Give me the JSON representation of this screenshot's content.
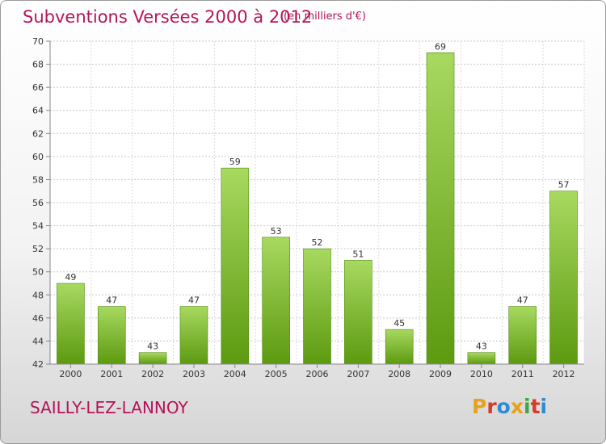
{
  "header": {
    "title": "Subventions Versées 2000 à 2012",
    "subtitle": "(en milliers d'€)"
  },
  "footer": {
    "commune": "SAILLY-LEZ-LANNOY",
    "logo": "Proxiti"
  },
  "colors": {
    "title": "#b5135a",
    "bar_light": "#a4d65e",
    "bar_dark": "#5f9e12",
    "logo_letters": [
      "#e6a21a",
      "#d83a2a",
      "#2f8bd0",
      "#e6a21a",
      "#3ba843",
      "#d83a2a",
      "#2f8bd0"
    ]
  },
  "chart_data": {
    "type": "bar",
    "categories": [
      "2000",
      "2001",
      "2002",
      "2003",
      "2004",
      "2005",
      "2006",
      "2007",
      "2008",
      "2009",
      "2010",
      "2011",
      "2012"
    ],
    "values": [
      49,
      47,
      43,
      47,
      59,
      53,
      52,
      51,
      45,
      69,
      43,
      47,
      57
    ],
    "ylim": [
      42,
      70
    ],
    "yticks": [
      42,
      44,
      46,
      48,
      50,
      52,
      54,
      56,
      58,
      60,
      62,
      64,
      66,
      68,
      70
    ],
    "grid": true,
    "xlabel": "",
    "ylabel": ""
  }
}
